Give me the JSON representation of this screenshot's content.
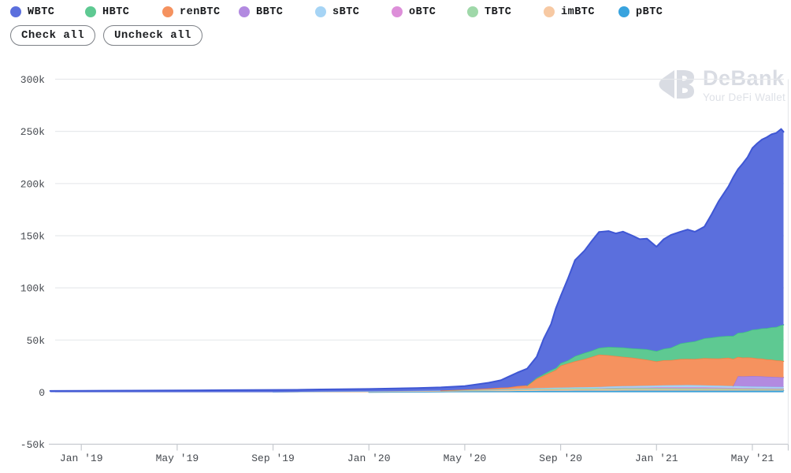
{
  "legend": {
    "items": [
      {
        "label": "WBTC",
        "color": "#5b6fdd",
        "line": "#3f57d4"
      },
      {
        "label": "HBTC",
        "color": "#5ec992",
        "line": "#3fbd87"
      },
      {
        "label": "renBTC",
        "color": "#f5925f",
        "line": "#f28143"
      },
      {
        "label": "BBTC",
        "color": "#b28ae0",
        "line": "#a379d4"
      },
      {
        "label": "sBTC",
        "color": "#a6d4f5",
        "line": "#90c5ea"
      },
      {
        "label": "oBTC",
        "color": "#dd8fd9",
        "line": "#d687cf"
      },
      {
        "label": "TBTC",
        "color": "#9fd8a9",
        "line": "#85cb95"
      },
      {
        "label": "imBTC",
        "color": "#f7c9a3",
        "line": "#efb185"
      },
      {
        "label": "pBTC",
        "color": "#38a3de",
        "line": "#2f9ed8"
      }
    ]
  },
  "buttons": {
    "check_all": "Check all",
    "uncheck_all": "Uncheck all"
  },
  "watermark": {
    "title": "DeBank",
    "subtitle": "Your DeFi Wallet"
  },
  "chart_data": {
    "type": "area",
    "stacked": true,
    "unit": "thousand BTC tokens",
    "x_unit": "months since Jan 2019",
    "ylim": [
      -50,
      300
    ],
    "grid": true,
    "legend_position": "top",
    "x": [
      -1.3,
      0,
      2,
      4,
      6,
      8,
      9,
      10,
      12,
      14,
      15,
      16,
      17,
      17.5,
      17.8,
      18.2,
      18.6,
      19,
      19.3,
      19.6,
      19.8,
      20,
      20.3,
      20.6,
      21,
      21.3,
      21.6,
      22,
      22.3,
      22.6,
      23,
      23.3,
      23.6,
      24,
      24.3,
      24.6,
      25,
      25.3,
      25.6,
      26,
      26.3,
      26.6,
      27,
      27.2,
      27.4,
      27.6,
      27.8,
      28,
      28.2,
      28.4,
      28.6,
      28.8,
      29,
      29.1,
      29.2,
      29.3
    ],
    "x_ticks": [
      {
        "m": 0,
        "label": "Jan '19"
      },
      {
        "m": 4,
        "label": "May '19"
      },
      {
        "m": 8,
        "label": "Sep '19"
      },
      {
        "m": 12,
        "label": "Jan '20"
      },
      {
        "m": 16,
        "label": "May '20"
      },
      {
        "m": 20,
        "label": "Sep '20"
      },
      {
        "m": 24,
        "label": "Jan '21"
      },
      {
        "m": 28,
        "label": "May '21"
      }
    ],
    "y_ticks": [
      {
        "v": 300,
        "label": "300k"
      },
      {
        "v": 250,
        "label": "250k"
      },
      {
        "v": 200,
        "label": "200k"
      },
      {
        "v": 150,
        "label": "150k"
      },
      {
        "v": 100,
        "label": "100k"
      },
      {
        "v": 50,
        "label": "50k"
      },
      {
        "v": 0,
        "label": "0"
      },
      {
        "v": -50,
        "label": "-50k"
      }
    ],
    "stack_order": [
      "pBTC",
      "imBTC",
      "TBTC",
      "oBTC",
      "sBTC",
      "BBTC",
      "renBTC",
      "HBTC",
      "WBTC"
    ],
    "series": [
      {
        "name": "WBTC",
        "values": [
          1.2,
          1.3,
          1.5,
          1.7,
          2,
          2.2,
          2,
          2.1,
          2.3,
          2.6,
          3,
          3.5,
          5.5,
          7,
          10,
          13,
          16,
          20,
          34,
          44,
          57,
          64,
          78,
          92,
          98,
          105,
          111,
          111,
          109,
          111,
          108,
          105,
          106,
          100,
          105,
          108,
          107,
          108,
          105,
          107,
          118,
          130,
          143,
          152,
          157,
          162,
          167,
          174,
          178,
          181,
          183,
          185,
          186,
          187,
          188,
          185
        ]
      },
      {
        "name": "HBTC",
        "values": [
          0,
          0,
          0,
          0,
          0,
          0,
          0,
          0,
          0,
          0,
          0,
          0,
          0,
          0,
          0,
          0,
          0,
          1,
          1.5,
          2,
          2,
          2.5,
          3,
          5,
          6,
          6,
          6.5,
          8,
          8.5,
          9,
          9,
          9.5,
          10,
          10,
          11,
          12,
          15,
          16,
          17,
          19,
          20,
          21,
          21,
          22,
          23,
          24,
          25,
          27,
          28,
          29,
          30,
          31,
          32,
          33,
          34,
          35
        ]
      },
      {
        "name": "renBTC",
        "values": [
          0,
          0,
          0,
          0,
          0,
          0,
          0,
          0,
          0,
          0,
          0,
          0.3,
          1,
          1.5,
          1.5,
          2.5,
          3,
          9,
          12,
          15,
          17,
          21,
          23,
          25,
          27,
          29,
          31,
          30,
          29,
          28,
          27,
          26,
          25,
          23,
          24,
          24,
          25,
          25,
          25,
          26,
          26,
          26,
          27,
          26,
          18.5,
          18,
          18,
          17.5,
          17,
          17,
          16.5,
          16.5,
          16,
          16,
          16,
          15.5
        ]
      },
      {
        "name": "BBTC",
        "values": [
          0,
          0,
          0,
          0,
          0,
          0,
          0,
          0,
          0,
          0,
          0,
          0,
          0,
          0,
          0,
          0,
          0,
          0,
          0,
          0,
          0,
          0,
          0,
          0,
          0,
          0,
          0,
          0,
          0,
          0,
          0,
          0,
          0,
          0,
          0,
          0,
          0,
          0,
          0,
          0,
          0,
          0,
          0,
          0,
          9.5,
          9.5,
          9.7,
          10,
          10,
          9.8,
          9.6,
          9.5,
          9.4,
          9.3,
          9.2,
          9
        ]
      },
      {
        "name": "sBTC",
        "values": [
          0,
          0,
          0,
          0,
          0,
          0,
          0.1,
          0.15,
          0.2,
          0.3,
          0.35,
          0.4,
          0.5,
          0.55,
          0.6,
          0.65,
          0.7,
          0.8,
          0.85,
          0.9,
          0.95,
          1,
          1.05,
          1.1,
          1.2,
          1.25,
          1.3,
          1.4,
          1.5,
          1.55,
          1.6,
          1.7,
          1.75,
          1.8,
          1.9,
          2,
          2.1,
          2.2,
          2.1,
          2,
          1.95,
          1.9,
          1.8,
          1.75,
          1.7,
          1.7,
          1.65,
          1.6,
          1.6,
          1.6,
          1.6,
          1.55,
          1.5,
          1.5,
          1.5,
          1.5
        ]
      },
      {
        "name": "oBTC",
        "values": [
          0,
          0,
          0,
          0,
          0,
          0,
          0,
          0,
          0,
          0,
          0,
          0,
          0,
          0,
          0,
          0,
          0,
          0,
          0,
          0,
          0,
          0,
          0,
          0,
          0,
          0,
          0,
          0.2,
          0.3,
          0.4,
          0.5,
          0.55,
          0.6,
          0.8,
          0.9,
          0.95,
          1,
          1,
          1,
          1,
          0.95,
          0.9,
          0.8,
          0.8,
          0.75,
          0.7,
          0.7,
          0.7,
          0.65,
          0.65,
          0.6,
          0.6,
          0.6,
          0.6,
          0.6,
          0.6
        ]
      },
      {
        "name": "TBTC",
        "values": [
          0,
          0,
          0,
          0,
          0,
          0,
          0,
          0,
          0,
          0,
          0,
          0.1,
          0.2,
          0.3,
          0.35,
          0.4,
          0.5,
          0.6,
          0.65,
          0.7,
          0.75,
          0.8,
          0.85,
          0.9,
          1,
          1.05,
          1.1,
          1.2,
          1.25,
          1.3,
          1.3,
          1.3,
          1.25,
          1.25,
          1.25,
          1.2,
          1.2,
          1.2,
          1.2,
          1.15,
          1.1,
          1.1,
          1.05,
          1,
          0.95,
          0.95,
          0.9,
          0.9,
          0.85,
          0.85,
          0.8,
          0.8,
          0.75,
          0.75,
          0.7,
          0.7
        ]
      },
      {
        "name": "imBTC",
        "values": [
          0,
          0,
          0,
          0,
          0,
          0,
          0.2,
          0.4,
          0.6,
          0.7,
          0.75,
          0.8,
          1,
          1.05,
          1.1,
          1.15,
          1.2,
          1.3,
          1.3,
          1.3,
          1.3,
          1.3,
          1.3,
          1.25,
          1.2,
          1.2,
          1.2,
          1.2,
          1.15,
          1.15,
          1.1,
          1.1,
          1.1,
          1.1,
          1.05,
          1.05,
          1,
          1,
          1,
          1,
          0.95,
          0.95,
          0.9,
          0.9,
          0.9,
          0.85,
          0.85,
          0.8,
          0.8,
          0.8,
          0.8,
          0.8,
          0.8,
          0.8,
          0.8,
          0.8
        ]
      },
      {
        "name": "pBTC",
        "values": [
          0,
          0,
          0,
          0,
          0,
          0,
          0,
          0,
          0,
          0.3,
          0.5,
          0.8,
          0.9,
          1,
          1,
          1.1,
          1.1,
          1.2,
          1.25,
          1.3,
          1.3,
          1.35,
          1.35,
          1.4,
          1.4,
          1.4,
          1.45,
          1.45,
          1.45,
          1.5,
          1.5,
          1.5,
          1.5,
          1.5,
          1.5,
          1.5,
          1.5,
          1.5,
          1.5,
          1.5,
          1.5,
          1.5,
          1.5,
          1.5,
          1.5,
          1.5,
          1.5,
          1.5,
          1.5,
          1.5,
          1.5,
          1.5,
          1.5,
          1.5,
          1.5,
          1.5
        ]
      }
    ]
  }
}
